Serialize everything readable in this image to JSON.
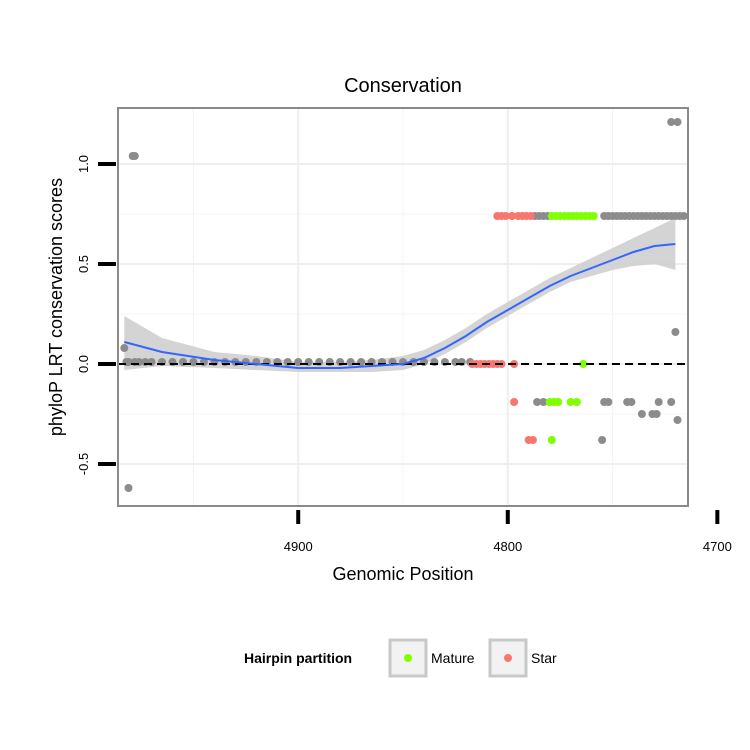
{
  "chart_data": {
    "type": "scatter",
    "title": "Conservation",
    "xlabel": "Genomic Position",
    "ylabel": "phyloP LRT conservation scores",
    "x_reversed": true,
    "xlim": [
      4714,
      4986
    ],
    "ylim": [
      -0.71,
      1.28
    ],
    "x_ticks": [
      4900,
      4800,
      4700
    ],
    "x_tick_labels": [
      "4900",
      "4800",
      "4700"
    ],
    "y_ticks": [
      1.0,
      0.5,
      0.0,
      -0.5
    ],
    "y_tick_labels": [
      "1.0",
      "0.5",
      "0.0",
      "-0.5"
    ],
    "reference_line": {
      "y": 0,
      "style": "dashed"
    },
    "legend": {
      "title": "Hairpin partition",
      "placement": "bottom",
      "entries": [
        {
          "label": "Mature",
          "color": "#7fff00"
        },
        {
          "label": "Star",
          "color": "#f8766d"
        }
      ]
    },
    "colors": {
      "other": "#8c8c8c",
      "mature": "#7fff00",
      "star": "#f8766d",
      "smooth": "#3366ff",
      "ribbon": "#cccccc"
    },
    "series": [
      {
        "name": "Other",
        "points": [
          [
            4983,
            0.08
          ],
          [
            4982,
            0.01
          ],
          [
            4981,
            0.01
          ],
          [
            4979,
            1.04
          ],
          [
            4978,
            1.04
          ],
          [
            4981,
            -0.62
          ],
          [
            4978,
            0.01
          ],
          [
            4976,
            0.01
          ],
          [
            4973,
            0.01
          ],
          [
            4970,
            0.01
          ],
          [
            4965,
            0.01
          ],
          [
            4960,
            0.01
          ],
          [
            4955,
            0.01
          ],
          [
            4950,
            0.01
          ],
          [
            4945,
            0.01
          ],
          [
            4940,
            0.01
          ],
          [
            4935,
            0.01
          ],
          [
            4930,
            0.01
          ],
          [
            4925,
            0.01
          ],
          [
            4920,
            0.01
          ],
          [
            4915,
            0.01
          ],
          [
            4910,
            0.01
          ],
          [
            4905,
            0.01
          ],
          [
            4900,
            0.01
          ],
          [
            4895,
            0.01
          ],
          [
            4890,
            0.01
          ],
          [
            4885,
            0.01
          ],
          [
            4880,
            0.01
          ],
          [
            4875,
            0.01
          ],
          [
            4870,
            0.01
          ],
          [
            4865,
            0.01
          ],
          [
            4860,
            0.01
          ],
          [
            4855,
            0.01
          ],
          [
            4850,
            0.01
          ],
          [
            4845,
            0.01
          ],
          [
            4840,
            0.01
          ],
          [
            4835,
            0.01
          ],
          [
            4830,
            0.01
          ],
          [
            4825,
            0.01
          ],
          [
            4822,
            0.01
          ],
          [
            4818,
            0.01
          ],
          [
            4787,
            0.74
          ],
          [
            4785,
            0.74
          ],
          [
            4783,
            0.74
          ],
          [
            4781,
            0.74
          ],
          [
            4754,
            0.74
          ],
          [
            4752,
            0.74
          ],
          [
            4750,
            0.74
          ],
          [
            4748,
            0.74
          ],
          [
            4746,
            0.74
          ],
          [
            4744,
            0.74
          ],
          [
            4742,
            0.74
          ],
          [
            4740,
            0.74
          ],
          [
            4738,
            0.74
          ],
          [
            4736,
            0.74
          ],
          [
            4734,
            0.74
          ],
          [
            4732,
            0.74
          ],
          [
            4730,
            0.74
          ],
          [
            4728,
            0.74
          ],
          [
            4726,
            0.74
          ],
          [
            4724,
            0.74
          ],
          [
            4722,
            0.74
          ],
          [
            4720,
            0.74
          ],
          [
            4718,
            0.74
          ],
          [
            4716,
            0.74
          ],
          [
            4722,
            1.21
          ],
          [
            4719,
            1.21
          ],
          [
            4720,
            0.16
          ],
          [
            4786,
            -0.19
          ],
          [
            4783,
            -0.19
          ],
          [
            4754,
            -0.19
          ],
          [
            4752,
            -0.19
          ],
          [
            4743,
            -0.19
          ],
          [
            4741,
            -0.19
          ],
          [
            4728,
            -0.19
          ],
          [
            4722,
            -0.19
          ],
          [
            4736,
            -0.25
          ],
          [
            4731,
            -0.25
          ],
          [
            4729,
            -0.25
          ],
          [
            4719,
            -0.28
          ],
          [
            4755,
            -0.38
          ]
        ]
      },
      {
        "name": "Mature",
        "points": [
          [
            4779,
            0.74
          ],
          [
            4777,
            0.74
          ],
          [
            4775,
            0.74
          ],
          [
            4773,
            0.74
          ],
          [
            4771,
            0.74
          ],
          [
            4769,
            0.74
          ],
          [
            4767,
            0.74
          ],
          [
            4765,
            0.74
          ],
          [
            4763,
            0.74
          ],
          [
            4761,
            0.74
          ],
          [
            4759,
            0.74
          ],
          [
            4764,
            0.0
          ],
          [
            4780,
            -0.19
          ],
          [
            4778,
            -0.19
          ],
          [
            4776,
            -0.19
          ],
          [
            4770,
            -0.19
          ],
          [
            4767,
            -0.19
          ],
          [
            4779,
            -0.38
          ]
        ]
      },
      {
        "name": "Star",
        "points": [
          [
            4805,
            0.74
          ],
          [
            4803,
            0.74
          ],
          [
            4801,
            0.74
          ],
          [
            4798,
            0.74
          ],
          [
            4795,
            0.74
          ],
          [
            4793,
            0.74
          ],
          [
            4791,
            0.74
          ],
          [
            4789,
            0.74
          ],
          [
            4817,
            0.0
          ],
          [
            4815,
            0.0
          ],
          [
            4813,
            0.0
          ],
          [
            4811,
            0.0
          ],
          [
            4809,
            0.0
          ],
          [
            4807,
            0.0
          ],
          [
            4805,
            0.0
          ],
          [
            4803,
            0.0
          ],
          [
            4797,
            0.0
          ],
          [
            4797,
            -0.19
          ],
          [
            4790,
            -0.38
          ],
          [
            4788,
            -0.38
          ]
        ]
      }
    ],
    "smooth_line": {
      "x": [
        4983,
        4965,
        4940,
        4920,
        4900,
        4880,
        4865,
        4850,
        4840,
        4830,
        4820,
        4810,
        4800,
        4790,
        4780,
        4770,
        4760,
        4750,
        4740,
        4730,
        4720
      ],
      "y": [
        0.11,
        0.06,
        0.02,
        0.0,
        -0.02,
        -0.02,
        -0.01,
        0.0,
        0.03,
        0.08,
        0.14,
        0.21,
        0.27,
        0.33,
        0.39,
        0.44,
        0.48,
        0.52,
        0.56,
        0.59,
        0.6
      ]
    },
    "smooth_ribbon": {
      "x": [
        4983,
        4965,
        4940,
        4920,
        4900,
        4880,
        4865,
        4850,
        4840,
        4830,
        4820,
        4810,
        4800,
        4790,
        4780,
        4770,
        4760,
        4750,
        4740,
        4730,
        4720
      ],
      "lower": [
        -0.03,
        -0.01,
        -0.02,
        -0.03,
        -0.04,
        -0.04,
        -0.04,
        -0.03,
        0.0,
        0.05,
        0.11,
        0.18,
        0.24,
        0.3,
        0.36,
        0.41,
        0.44,
        0.47,
        0.49,
        0.5,
        0.47
      ],
      "upper": [
        0.24,
        0.13,
        0.06,
        0.04,
        0.01,
        0.01,
        0.02,
        0.04,
        0.07,
        0.12,
        0.18,
        0.25,
        0.31,
        0.37,
        0.43,
        0.48,
        0.53,
        0.58,
        0.63,
        0.68,
        0.73
      ]
    }
  }
}
